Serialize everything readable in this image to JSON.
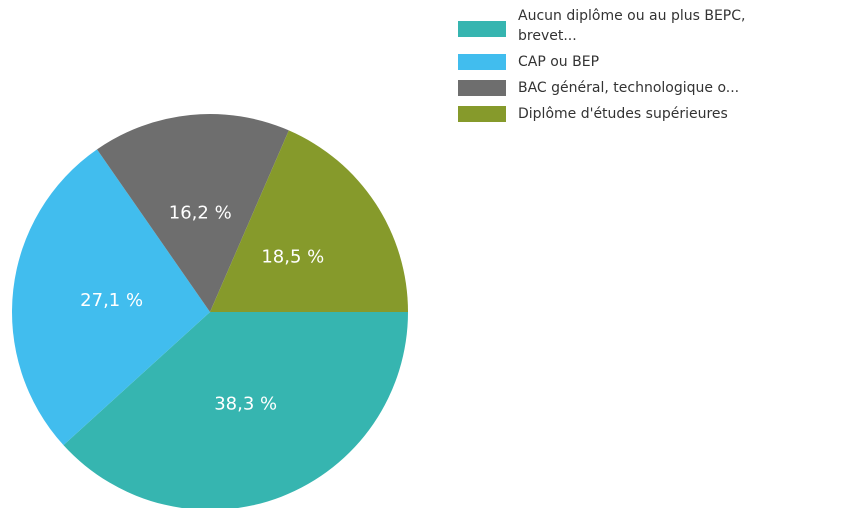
{
  "chart_data": {
    "type": "pie",
    "categories": [
      "Aucun diplôme ou au plus BEPC, brevet...",
      "CAP ou BEP",
      "BAC général, technologique o...",
      "Diplôme d'études supérieures"
    ],
    "values": [
      38.3,
      27.1,
      16.2,
      18.5
    ],
    "value_labels": [
      "38,3 %",
      "27,1 %",
      "16,2 %",
      "18,5 %"
    ],
    "colors": [
      "#36b5b0",
      "#41bdee",
      "#6e6e6e",
      "#869a2b"
    ]
  }
}
